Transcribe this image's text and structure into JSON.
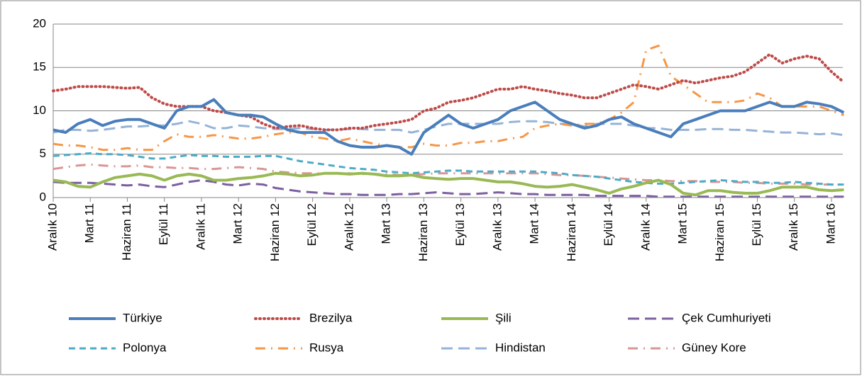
{
  "chart_data": {
    "type": "line",
    "categories": [
      "Aralık 10",
      null,
      null,
      "Mart 11",
      null,
      null,
      "Haziran 11",
      null,
      null,
      "Eylül 11",
      null,
      null,
      "Aralık 11",
      null,
      null,
      "Mart 12",
      null,
      null,
      "Haziran 12",
      null,
      null,
      "Eylül 12",
      null,
      null,
      "Aralık 12",
      null,
      null,
      "Mart 13",
      null,
      null,
      "Haziran 13",
      null,
      null,
      "Eylül 13",
      null,
      null,
      "Aralık 13",
      null,
      null,
      "Mart 14",
      null,
      null,
      "Haziran 14",
      null,
      null,
      "Eylül 14",
      null,
      null,
      "Aralık 14",
      null,
      null,
      "Mart 15",
      null,
      null,
      "Haziran 15",
      null,
      null,
      "Eylül 15",
      null,
      null,
      "Aralık 15",
      null,
      null,
      "Mart 16",
      null
    ],
    "ylim": [
      0,
      20
    ],
    "yticks": [
      0,
      5,
      10,
      15,
      20
    ],
    "grid": true,
    "series": [
      {
        "name": "Türkiye",
        "color": "#4a7ebb",
        "style": "solid",
        "width": 4,
        "values": [
          7.8,
          7.5,
          8.5,
          9.0,
          8.3,
          8.8,
          9.0,
          9.0,
          8.5,
          8.0,
          10.0,
          10.5,
          10.5,
          11.3,
          9.8,
          9.5,
          9.5,
          9.3,
          8.5,
          7.8,
          7.5,
          7.5,
          7.5,
          6.5,
          6.0,
          5.8,
          5.8,
          6.0,
          5.8,
          5.0,
          7.5,
          8.5,
          9.5,
          8.5,
          8.0,
          8.5,
          9.0,
          10.0,
          10.5,
          11.0,
          10.0,
          9.0,
          8.5,
          8.0,
          8.3,
          9.0,
          9.3,
          8.5,
          8.0,
          7.5,
          7.0,
          8.5,
          9.0,
          9.5,
          10.0,
          10.0,
          10.0,
          10.5,
          11.0,
          10.5,
          10.5,
          11.0,
          10.8,
          10.5,
          9.8
        ]
      },
      {
        "name": "Brezilya",
        "color": "#be4b48",
        "style": "dotted",
        "width": 4,
        "values": [
          12.3,
          12.5,
          12.8,
          12.8,
          12.8,
          12.7,
          12.6,
          12.7,
          11.5,
          10.8,
          10.5,
          10.5,
          10.5,
          10.0,
          9.8,
          9.5,
          9.3,
          8.5,
          8.0,
          8.2,
          8.3,
          8.0,
          7.8,
          7.8,
          8.0,
          8.0,
          8.3,
          8.5,
          8.7,
          9.0,
          10.0,
          10.3,
          11.0,
          11.2,
          11.5,
          12.0,
          12.5,
          12.5,
          12.8,
          12.5,
          12.3,
          12.0,
          11.8,
          11.5,
          11.5,
          12.0,
          12.5,
          13.0,
          12.8,
          12.5,
          13.0,
          13.5,
          13.2,
          13.5,
          13.8,
          14.0,
          14.5,
          15.5,
          16.5,
          15.5,
          16.0,
          16.3,
          16.0,
          14.5,
          13.3
        ]
      },
      {
        "name": "Şili",
        "color": "#98b954",
        "style": "solid",
        "width": 4,
        "values": [
          2.0,
          1.8,
          1.3,
          1.2,
          1.8,
          2.3,
          2.5,
          2.7,
          2.5,
          2.0,
          2.5,
          2.7,
          2.5,
          2.0,
          2.0,
          2.2,
          2.3,
          2.5,
          2.8,
          2.7,
          2.5,
          2.6,
          2.8,
          2.8,
          2.7,
          2.8,
          2.7,
          2.5,
          2.5,
          2.6,
          2.3,
          2.2,
          2.1,
          2.2,
          2.2,
          2.0,
          1.8,
          1.8,
          1.6,
          1.3,
          1.2,
          1.3,
          1.5,
          1.2,
          0.9,
          0.5,
          1.0,
          1.3,
          1.7,
          2.0,
          1.5,
          0.5,
          0.3,
          0.8,
          0.8,
          0.6,
          0.5,
          0.5,
          0.8,
          1.2,
          1.2,
          1.2,
          0.9,
          0.8,
          0.9
        ]
      },
      {
        "name": "Çek Cumhuriyeti",
        "color": "#7d5fa0",
        "style": "longdash",
        "width": 3,
        "values": [
          1.8,
          1.7,
          1.7,
          1.7,
          1.6,
          1.5,
          1.4,
          1.5,
          1.3,
          1.2,
          1.5,
          1.8,
          2.0,
          1.8,
          1.5,
          1.4,
          1.6,
          1.5,
          1.1,
          0.9,
          0.7,
          0.6,
          0.5,
          0.4,
          0.4,
          0.3,
          0.3,
          0.3,
          0.4,
          0.4,
          0.5,
          0.6,
          0.5,
          0.4,
          0.4,
          0.5,
          0.6,
          0.5,
          0.4,
          0.4,
          0.3,
          0.3,
          0.3,
          0.3,
          0.2,
          0.2,
          0.2,
          0.2,
          0.2,
          0.1,
          0.1,
          0.1,
          0.1,
          0.1,
          0.1,
          0.1,
          0.1,
          0.1,
          0.1,
          0.1,
          0.1,
          0.1,
          0.1,
          0.1,
          0.1
        ]
      },
      {
        "name": "Polonya",
        "color": "#4bacc6",
        "style": "dash",
        "width": 3,
        "values": [
          4.8,
          4.9,
          5.0,
          5.1,
          5.0,
          5.0,
          4.9,
          4.7,
          4.5,
          4.5,
          4.7,
          4.9,
          4.8,
          4.8,
          4.7,
          4.7,
          4.7,
          4.8,
          4.8,
          4.5,
          4.2,
          4.0,
          3.8,
          3.6,
          3.4,
          3.3,
          3.2,
          3.0,
          2.9,
          2.8,
          2.9,
          3.0,
          3.1,
          3.1,
          3.0,
          3.0,
          3.0,
          3.0,
          3.0,
          3.0,
          2.9,
          2.8,
          2.6,
          2.5,
          2.4,
          2.2,
          2.0,
          1.8,
          1.7,
          1.6,
          1.6,
          1.7,
          1.8,
          1.9,
          2.0,
          1.9,
          1.8,
          1.8,
          1.7,
          1.7,
          1.8,
          1.7,
          1.6,
          1.5,
          1.5
        ]
      },
      {
        "name": "Rusya",
        "color": "#f79646",
        "style": "dashdot",
        "width": 3,
        "values": [
          6.2,
          6.0,
          6.0,
          5.8,
          5.5,
          5.5,
          5.7,
          5.5,
          5.5,
          6.5,
          7.3,
          7.0,
          7.0,
          7.2,
          7.0,
          6.8,
          6.8,
          7.0,
          7.3,
          7.5,
          7.5,
          7.0,
          6.8,
          6.5,
          6.8,
          6.5,
          6.2,
          6.0,
          5.8,
          5.8,
          6.2,
          6.0,
          6.0,
          6.3,
          6.3,
          6.5,
          6.5,
          6.8,
          7.0,
          8.0,
          8.3,
          8.5,
          8.3,
          8.5,
          8.5,
          9.0,
          9.8,
          11.0,
          17.0,
          17.5,
          14.0,
          13.0,
          12.0,
          11.0,
          11.0,
          11.0,
          11.2,
          12.0,
          11.5,
          10.5,
          10.5,
          10.5,
          10.5,
          10.0,
          9.5
        ]
      },
      {
        "name": "Hindistan",
        "color": "#95b3d7",
        "style": "longdash",
        "width": 3,
        "values": [
          7.5,
          7.8,
          7.8,
          7.7,
          7.8,
          8.0,
          8.2,
          8.2,
          8.3,
          8.3,
          8.5,
          8.8,
          8.5,
          8.0,
          8.0,
          8.3,
          8.2,
          8.0,
          7.9,
          7.9,
          8.0,
          7.9,
          7.8,
          7.8,
          7.9,
          7.9,
          7.8,
          7.8,
          7.8,
          7.5,
          7.8,
          8.2,
          8.5,
          8.5,
          8.5,
          8.5,
          8.5,
          8.7,
          8.8,
          8.8,
          8.7,
          8.5,
          8.5,
          8.2,
          8.5,
          8.5,
          8.5,
          8.3,
          8.0,
          8.0,
          7.8,
          7.8,
          7.8,
          7.9,
          7.9,
          7.8,
          7.8,
          7.7,
          7.6,
          7.5,
          7.5,
          7.4,
          7.3,
          7.4,
          7.2
        ]
      },
      {
        "name": "Güney Kore",
        "color": "#d99694",
        "style": "dashdot",
        "width": 3,
        "values": [
          3.3,
          3.5,
          3.7,
          3.8,
          3.7,
          3.6,
          3.6,
          3.7,
          3.5,
          3.5,
          3.4,
          3.4,
          3.3,
          3.3,
          3.4,
          3.5,
          3.4,
          3.3,
          3.0,
          2.9,
          2.8,
          2.8,
          2.8,
          2.8,
          2.8,
          2.7,
          2.7,
          2.7,
          2.6,
          2.6,
          2.7,
          2.8,
          2.8,
          2.8,
          2.8,
          2.8,
          2.8,
          2.8,
          2.8,
          2.8,
          2.7,
          2.6,
          2.6,
          2.5,
          2.4,
          2.3,
          2.2,
          2.1,
          2.0,
          2.0,
          1.9,
          1.9,
          1.9,
          1.8,
          1.8,
          1.8,
          1.7,
          1.7,
          1.6,
          1.6,
          1.6,
          1.5,
          1.5,
          1.5,
          1.5
        ]
      }
    ]
  }
}
